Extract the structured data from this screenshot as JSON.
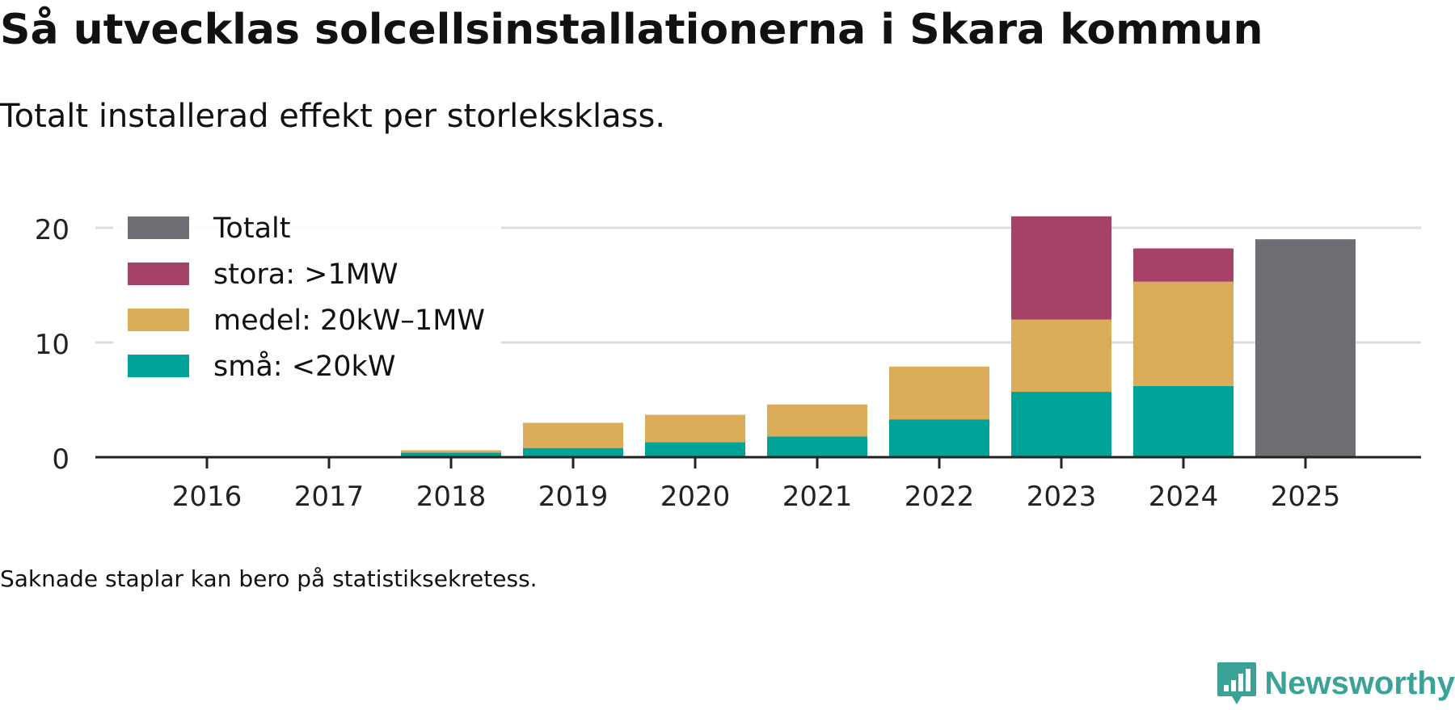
{
  "title": "Så utvecklas solcellsinstallationerna i Skara kommun",
  "subtitle": "Totalt installerad effekt per storleksklass.",
  "footnote": "Saknade staplar kan bero på statistiksekretess.",
  "brand": {
    "name": "Newsworthy",
    "icon": "newsworthy-logo-icon"
  },
  "colors": {
    "total": "#6e6d73",
    "large": "#a64267",
    "medium": "#dbac5a",
    "small": "#00a398",
    "grid": "#dddddd",
    "axis": "#222222",
    "brand": "#3aa296"
  },
  "chart_data": {
    "type": "bar",
    "stacked": true,
    "categories": [
      "2016",
      "2017",
      "2018",
      "2019",
      "2020",
      "2021",
      "2022",
      "2023",
      "2024",
      "2025"
    ],
    "series": [
      {
        "key": "small",
        "name": "små: <20kW",
        "values": [
          0,
          0,
          0.4,
          0.8,
          1.3,
          1.8,
          3.3,
          5.7,
          6.2,
          null
        ]
      },
      {
        "key": "medium",
        "name": "medel: 20kW–1MW",
        "values": [
          0,
          0,
          0.2,
          2.2,
          2.4,
          2.8,
          4.6,
          6.3,
          9.1,
          null
        ]
      },
      {
        "key": "large",
        "name": "stora: >1MW",
        "values": [
          0,
          0,
          0,
          0,
          0,
          0,
          0,
          9.0,
          2.9,
          null
        ]
      },
      {
        "key": "total",
        "name": "Totalt",
        "values": [
          null,
          null,
          null,
          null,
          null,
          null,
          null,
          null,
          null,
          19.0
        ]
      }
    ],
    "legend_order": [
      "total",
      "large",
      "medium",
      "small"
    ],
    "yticks": [
      0,
      10,
      20
    ],
    "ylim": [
      0,
      21
    ],
    "legend_position": "top-left",
    "grid": true
  }
}
